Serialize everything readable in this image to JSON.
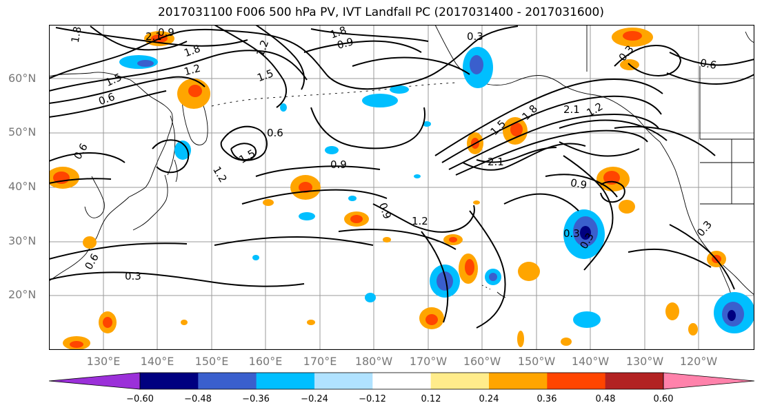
{
  "title": "2017031100 F006 500 hPa PV, IVT Landfall PC (2017031400 - 2017031600)",
  "lat_labels": [
    "60°N",
    "50°N",
    "40°N",
    "30°N",
    "20°N"
  ],
  "lon_labels": [
    "130°E",
    "140°E",
    "150°E",
    "160°E",
    "170°E",
    "180°W",
    "170°W",
    "160°W",
    "150°W",
    "140°W",
    "130°W",
    "120°W"
  ],
  "colorbar": {
    "colors": [
      "#9b30d9",
      "#000080",
      "#3a5fcd",
      "#00bfff",
      "#b0e2ff",
      "#ffffff",
      "#ffec8b",
      "#ffa500",
      "#ff4500",
      "#b22222",
      "#ff82ab"
    ],
    "ticks": [
      "−0.60",
      "−0.48",
      "−0.36",
      "−0.24",
      "−0.12",
      "0.12",
      "0.24",
      "0.36",
      "0.48",
      "0.60"
    ]
  },
  "contour_labels": [
    {
      "text": "1.8"
    },
    {
      "text": "2.1"
    },
    {
      "text": "0.9"
    },
    {
      "text": "1.8"
    },
    {
      "text": "1.2"
    },
    {
      "text": "1.5"
    },
    {
      "text": "0.6"
    },
    {
      "text": "1.8"
    },
    {
      "text": "0.9"
    },
    {
      "text": "0.3"
    },
    {
      "text": "1.2"
    },
    {
      "text": "1.5"
    },
    {
      "text": "0.6"
    },
    {
      "text": "0.9"
    },
    {
      "text": "0.3"
    },
    {
      "text": "1.2"
    },
    {
      "text": "0.9"
    },
    {
      "text": "1.5"
    },
    {
      "text": "1.8"
    },
    {
      "text": "2.1"
    },
    {
      "text": "2.1"
    },
    {
      "text": "1.2"
    },
    {
      "text": "0.9"
    },
    {
      "text": "0.3"
    },
    {
      "text": "0.3"
    },
    {
      "text": "0.3"
    },
    {
      "text": "0.6"
    },
    {
      "text": "0.6"
    },
    {
      "text": "1.2"
    },
    {
      "text": "0.6"
    },
    {
      "text": "1.5"
    },
    {
      "text": "0.3"
    }
  ]
}
